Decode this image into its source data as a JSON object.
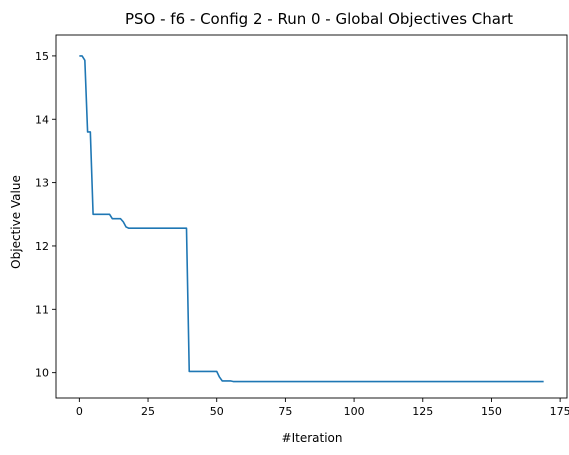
{
  "chart_data": {
    "type": "line",
    "title": "PSO - f6 - Config 2 - Run 0 - Global Objectives Chart",
    "xlabel": "#Iteration",
    "ylabel": "Objective Value",
    "xlim": [
      -8.5,
      177.5
    ],
    "ylim": [
      9.6,
      15.33
    ],
    "xticks": [
      0,
      25,
      50,
      75,
      100,
      125,
      150,
      175
    ],
    "yticks": [
      10,
      11,
      12,
      13,
      14,
      15
    ],
    "grid": false,
    "legend": "none",
    "series": [
      {
        "color": "#1f77b4",
        "x": [
          0,
          1,
          2,
          3,
          4,
          5,
          6,
          7,
          8,
          9,
          10,
          11,
          12,
          13,
          14,
          15,
          16,
          17,
          18,
          19,
          20,
          25,
          30,
          35,
          38,
          39,
          40,
          41,
          45,
          50,
          51,
          52,
          53,
          54,
          55,
          56,
          57,
          60,
          80,
          100,
          120,
          140,
          160,
          169
        ],
        "y": [
          15.0,
          15.0,
          14.93,
          13.8,
          13.8,
          12.5,
          12.5,
          12.5,
          12.5,
          12.5,
          12.5,
          12.5,
          12.43,
          12.43,
          12.43,
          12.43,
          12.38,
          12.3,
          12.28,
          12.28,
          12.28,
          12.28,
          12.28,
          12.28,
          12.28,
          12.28,
          10.02,
          10.02,
          10.02,
          10.02,
          9.93,
          9.87,
          9.87,
          9.87,
          9.87,
          9.86,
          9.86,
          9.86,
          9.86,
          9.86,
          9.86,
          9.86,
          9.86,
          9.86
        ]
      }
    ]
  }
}
